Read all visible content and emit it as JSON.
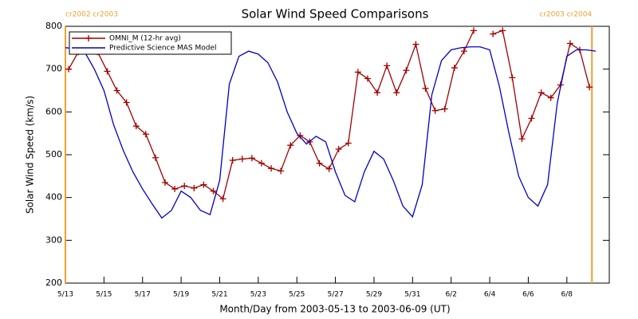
{
  "chart_data": {
    "type": "line",
    "title": "Solar Wind Speed Comparisons",
    "x_label": "Month/Day from 2003-05-13 to 2003-06-09 (UT)",
    "y_label": "Solar Wind Speed (km/s)",
    "xlim": [
      0,
      28.2
    ],
    "xticks": [
      {
        "value": 0,
        "label": "5/13"
      },
      {
        "value": 2,
        "label": "5/15"
      },
      {
        "value": 4,
        "label": "5/17"
      },
      {
        "value": 6,
        "label": "5/19"
      },
      {
        "value": 8,
        "label": "5/21"
      },
      {
        "value": 10,
        "label": "5/23"
      },
      {
        "value": 12,
        "label": "5/25"
      },
      {
        "value": 14,
        "label": "5/27"
      },
      {
        "value": 16,
        "label": "5/29"
      },
      {
        "value": 18,
        "label": "5/31"
      },
      {
        "value": 20,
        "label": "6/2"
      },
      {
        "value": 22,
        "label": "6/4"
      },
      {
        "value": 24,
        "label": "6/6"
      },
      {
        "value": 26,
        "label": "6/8"
      }
    ],
    "ylim": [
      200,
      800
    ],
    "yticks": [
      200,
      300,
      400,
      500,
      600,
      700,
      800
    ],
    "legend": "upper left",
    "annotations": [
      {
        "x": 0,
        "label": "cr2002 cr2003"
      },
      {
        "x": 27.3,
        "label": "cr2003 cr2004"
      }
    ],
    "annotation_color": "#f0a030",
    "series": [
      {
        "name": "OMNI_M (12-hr avg)",
        "color": "#a00000",
        "marker": "+",
        "x": [
          0.17,
          0.67,
          1.17,
          1.67,
          2.17,
          2.67,
          3.17,
          3.67,
          4.17,
          4.67,
          5.17,
          5.67,
          6.17,
          6.67,
          7.17,
          7.67,
          8.17,
          8.67,
          9.17,
          9.67,
          10.17,
          10.67,
          11.17,
          11.67,
          12.17,
          12.67,
          13.17,
          13.67,
          14.17,
          14.67,
          15.17,
          15.67,
          16.17,
          16.67,
          17.17,
          17.67,
          18.17,
          18.67,
          19.17,
          19.67,
          20.17,
          20.67,
          21.17,
          21.67,
          22.17,
          22.67,
          23.17,
          23.67,
          24.17,
          24.67,
          25.17,
          25.67,
          26.17,
          26.67,
          27.17
        ],
        "values": [
          700,
          740,
          760,
          740,
          695,
          650,
          622,
          567,
          548,
          493,
          435,
          420,
          427,
          422,
          430,
          415,
          397,
          487,
          490,
          492,
          480,
          468,
          462,
          522,
          545,
          530,
          480,
          467,
          513,
          527,
          693,
          678,
          645,
          708,
          645,
          697,
          758,
          655,
          603,
          607,
          703,
          742,
          790,
          null,
          782,
          790,
          680,
          537,
          585,
          645,
          633,
          663,
          760,
          745,
          658
        ]
      },
      {
        "name": "Predictive Science MAS Model",
        "color": "#0000c8",
        "x": [
          0,
          0.5,
          1,
          1.5,
          2,
          2.5,
          3,
          3.5,
          4,
          4.5,
          5,
          5.5,
          6,
          6.5,
          7,
          7.5,
          8,
          8.5,
          9,
          9.5,
          10,
          10.5,
          11,
          11.5,
          12,
          12.5,
          13,
          13.5,
          14,
          14.5,
          15,
          15.5,
          16,
          16.5,
          17,
          17.5,
          18,
          18.5,
          19,
          19.5,
          20,
          20.5,
          21,
          21.5,
          22,
          22.5,
          23,
          23.5,
          24,
          24.5,
          25,
          25.5,
          26,
          26.5,
          27,
          27.5
        ],
        "values": [
          750,
          748,
          740,
          700,
          650,
          570,
          510,
          460,
          420,
          385,
          352,
          370,
          415,
          400,
          370,
          360,
          440,
          665,
          730,
          742,
          735,
          715,
          670,
          600,
          550,
          525,
          543,
          530,
          460,
          405,
          390,
          460,
          508,
          490,
          440,
          380,
          355,
          430,
          640,
          720,
          745,
          750,
          752,
          752,
          745,
          660,
          550,
          450,
          400,
          380,
          430,
          620,
          730,
          745,
          745,
          742
        ]
      }
    ]
  }
}
